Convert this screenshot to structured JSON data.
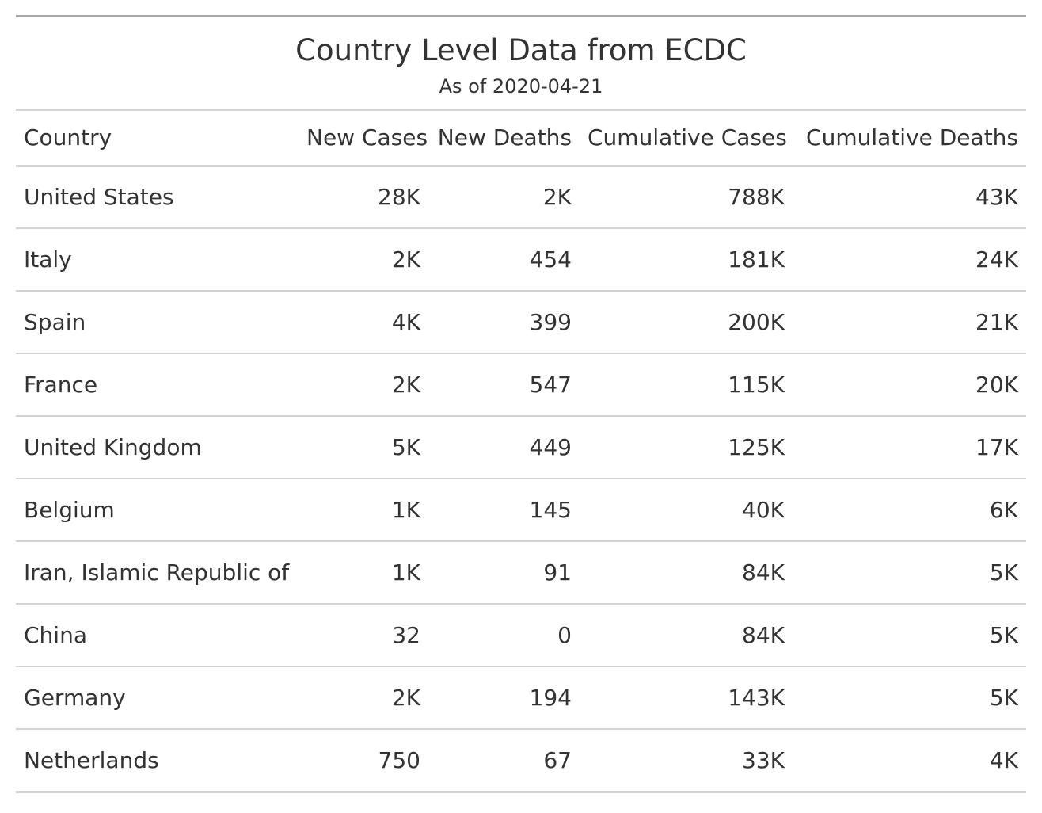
{
  "table": {
    "title": "Country Level Data from ECDC",
    "subtitle": "As of 2020-04-21",
    "columns": [
      "Country",
      "New Cases",
      "New Deaths",
      "Cumulative Cases",
      "Cumulative Deaths"
    ],
    "rows": [
      [
        "United States",
        "28K",
        "2K",
        "788K",
        "43K"
      ],
      [
        "Italy",
        "2K",
        "454",
        "181K",
        "24K"
      ],
      [
        "Spain",
        "4K",
        "399",
        "200K",
        "21K"
      ],
      [
        "France",
        "2K",
        "547",
        "115K",
        "20K"
      ],
      [
        "United Kingdom",
        "5K",
        "449",
        "125K",
        "17K"
      ],
      [
        "Belgium",
        "1K",
        "145",
        "40K",
        "6K"
      ],
      [
        "Iran, Islamic Republic of",
        "1K",
        "91",
        "84K",
        "5K"
      ],
      [
        "China",
        "32",
        "0",
        "84K",
        "5K"
      ],
      [
        "Germany",
        "2K",
        "194",
        "143K",
        "5K"
      ],
      [
        "Netherlands",
        "750",
        "67",
        "33K",
        "4K"
      ]
    ]
  }
}
